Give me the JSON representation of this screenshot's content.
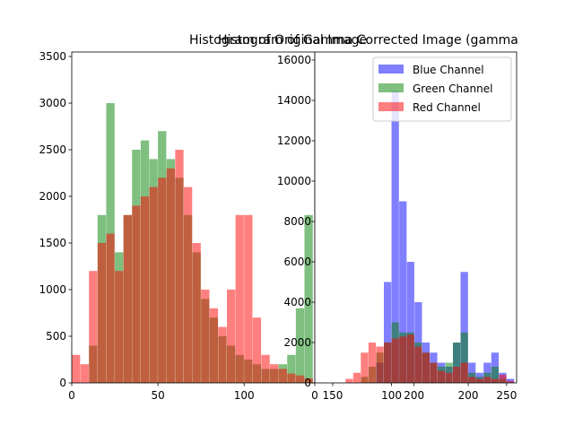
{
  "chart_data": [
    {
      "type": "histogram",
      "title": "Histogram of Original Image",
      "bins": [
        0,
        5,
        10,
        15,
        20,
        25,
        30,
        35,
        40,
        45,
        50,
        55,
        60,
        65,
        70,
        75,
        80,
        85,
        90,
        95,
        100,
        105,
        110,
        115,
        120,
        125,
        130,
        135,
        140
      ],
      "series": [
        {
          "color": "#008000",
          "values": [
            0,
            0,
            400,
            1800,
            3000,
            1400,
            1800,
            2500,
            2600,
            2400,
            2700,
            2400,
            2200,
            1800,
            1400,
            900,
            700,
            500,
            400,
            300,
            250,
            200,
            150,
            150,
            200,
            300,
            800,
            1800
          ]
        },
        {
          "color": "#ff0000",
          "values": [
            300,
            200,
            1200,
            1500,
            1600,
            1200,
            1800,
            1900,
            2000,
            2100,
            2200,
            2300,
            2500,
            2100,
            1500,
            1000,
            800,
            600,
            1000,
            1800,
            1800,
            700,
            300,
            200,
            150,
            100,
            80,
            50
          ]
        }
      ],
      "xlim": [
        0,
        141
      ],
      "xticks": [
        0,
        50,
        100
      ],
      "ylim": [
        0,
        3548
      ],
      "yticks": [
        0,
        500,
        1000,
        1500,
        2000,
        2500,
        3000,
        3500
      ]
    },
    {
      "type": "histogram",
      "title": "Histogram of Gamma Corrected Image (gamma",
      "bins": [
        0,
        10,
        20,
        30,
        40,
        50,
        60,
        70,
        80,
        90,
        100,
        110,
        120,
        130,
        140,
        150,
        160,
        170,
        180,
        190,
        200,
        210,
        220,
        230,
        240,
        250,
        260
      ],
      "series": [
        {
          "name": "Blue Channel",
          "color": "#0000ff",
          "values": [
            0,
            0,
            0,
            0,
            0,
            0,
            0,
            0,
            1000,
            5000,
            14500,
            9000,
            6000,
            4000,
            2000,
            1500,
            1000,
            800,
            2000,
            5500,
            1000,
            500,
            1000,
            1500,
            500,
            200
          ]
        },
        {
          "name": "Green Channel",
          "color": "#008000",
          "values": [
            0,
            0,
            0,
            0,
            0,
            0,
            300,
            800,
            1500,
            2000,
            3000,
            2500,
            2500,
            2000,
            1500,
            1000,
            800,
            1000,
            2000,
            2500,
            500,
            300,
            500,
            800,
            200,
            0
          ]
        },
        {
          "name": "Red Channel",
          "color": "#ff0000",
          "values": [
            0,
            0,
            0,
            0,
            200,
            500,
            1500,
            2000,
            1800,
            2000,
            2200,
            2300,
            2400,
            1800,
            1500,
            1000,
            600,
            500,
            800,
            1000,
            300,
            200,
            300,
            200,
            400,
            100
          ]
        }
      ],
      "xlim": [
        0,
        263
      ],
      "xticks": [
        0,
        100,
        200,
        250
      ],
      "x2lim": [
        139,
        263
      ],
      "x2ticks": [
        150,
        200
      ],
      "ylim": [
        0,
        16400
      ],
      "yticks": [
        0,
        2000,
        4000,
        6000,
        8000,
        10000,
        12000,
        14000,
        16000
      ],
      "legend": "upper right"
    }
  ]
}
